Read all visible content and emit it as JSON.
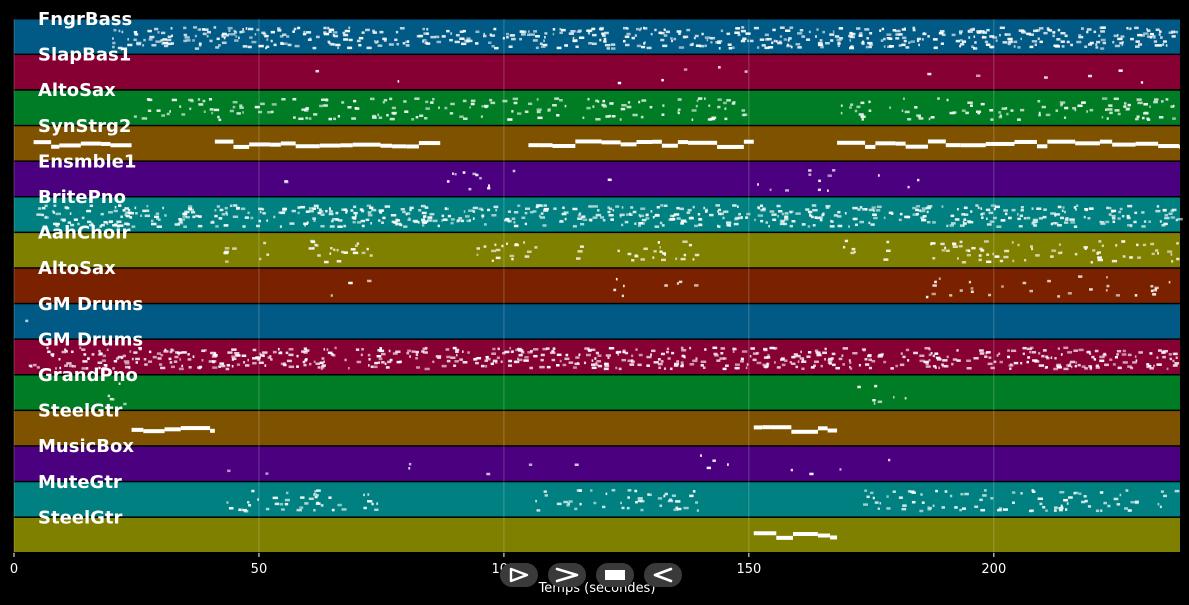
{
  "chart_data": {
    "type": "piano-roll",
    "xlabel": "Temps (secondes)",
    "xlim": [
      0,
      238
    ],
    "xticks": [
      0,
      50,
      100,
      150,
      200
    ],
    "grid": true,
    "tracks": [
      {
        "name": "FngrBass",
        "color": "#015a86",
        "segments": [
          [
            20,
            238
          ]
        ],
        "density": "high"
      },
      {
        "name": "SlapBas1",
        "color": "#870033",
        "segments": [
          [
            60,
            62
          ],
          [
            78,
            80
          ],
          [
            122,
            124
          ],
          [
            131,
            133
          ],
          [
            136,
            138
          ],
          [
            143,
            145
          ],
          [
            149,
            150
          ],
          [
            185,
            187
          ],
          [
            195,
            197
          ],
          [
            210,
            212
          ],
          [
            218,
            220
          ],
          [
            225,
            227
          ],
          [
            230,
            232
          ]
        ],
        "density": "sparse"
      },
      {
        "name": "AltoSax",
        "color": "#007d24",
        "segments": [
          [
            24,
            150
          ],
          [
            168,
            238
          ]
        ],
        "density": "medium"
      },
      {
        "name": "SynStrg2",
        "color": "#7f5200",
        "segments": [
          [
            4,
            24
          ],
          [
            41,
            87
          ],
          [
            105,
            151
          ],
          [
            168,
            238
          ]
        ],
        "density": "sustained"
      },
      {
        "name": "Ensmble1",
        "color": "#4a007f",
        "segments": [
          [
            54,
            58
          ],
          [
            87,
            105
          ],
          [
            120,
            122
          ],
          [
            151,
            168
          ],
          [
            176,
            178
          ],
          [
            182,
            186
          ]
        ],
        "density": "sparse"
      },
      {
        "name": "BritePno",
        "color": "#008080",
        "segments": [
          [
            4,
            238
          ]
        ],
        "density": "high"
      },
      {
        "name": "AahChoir",
        "color": "#7f7f00",
        "segments": [
          [
            42,
            46
          ],
          [
            50,
            52
          ],
          [
            60,
            76
          ],
          [
            94,
            107
          ],
          [
            114,
            116
          ],
          [
            123,
            140
          ],
          [
            168,
            172
          ],
          [
            177,
            179
          ],
          [
            186,
            238
          ]
        ],
        "density": "medium"
      },
      {
        "name": "AltoSax",
        "color": "#7a2200",
        "segments": [
          [
            64,
            66
          ],
          [
            68,
            70
          ],
          [
            72,
            74
          ],
          [
            122,
            128
          ],
          [
            132,
            134
          ],
          [
            135,
            140
          ],
          [
            186,
            238
          ]
        ],
        "density": "sparse"
      },
      {
        "name": "GM Drums",
        "color": "#015a86",
        "segments": [
          [
            2,
            3
          ]
        ],
        "density": "sparse"
      },
      {
        "name": "GM Drums",
        "color": "#870033",
        "segments": [
          [
            3,
            238
          ]
        ],
        "density": "high"
      },
      {
        "name": "GrandPno",
        "color": "#007d24",
        "segments": [
          [
            13,
            24
          ],
          [
            172,
            184
          ]
        ],
        "density": "sparse"
      },
      {
        "name": "SteelGtr",
        "color": "#7f5200",
        "segments": [
          [
            24,
            41
          ],
          [
            151,
            168
          ]
        ],
        "density": "sustained"
      },
      {
        "name": "MusicBox",
        "color": "#4a007f",
        "segments": [
          [
            42,
            44
          ],
          [
            50,
            52
          ],
          [
            78,
            82
          ],
          [
            95,
            97
          ],
          [
            104,
            106
          ],
          [
            114,
            116
          ],
          [
            140,
            146
          ],
          [
            158,
            160
          ],
          [
            162,
            164
          ],
          [
            168,
            170
          ],
          [
            177,
            179
          ]
        ],
        "density": "sparse"
      },
      {
        "name": "MuteGtr",
        "color": "#008080",
        "segments": [
          [
            43,
            75
          ],
          [
            106,
            140
          ],
          [
            172,
            238
          ]
        ],
        "density": "medium"
      },
      {
        "name": "SteelGtr",
        "color": "#7f7f00",
        "segments": [
          [
            151,
            168
          ]
        ],
        "density": "sustained"
      }
    ]
  },
  "controls": {
    "play_icon": "play-outline-icon",
    "forward_icon": "forward-icon",
    "stop_icon": "stop-icon",
    "back_icon": "back-icon"
  }
}
